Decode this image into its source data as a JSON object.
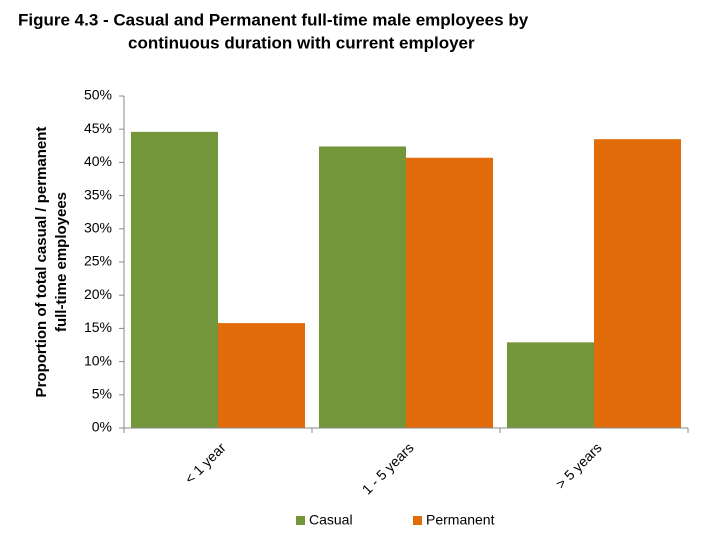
{
  "chart_data": {
    "type": "bar",
    "title": [
      "Figure 4.3 - Casual and Permanent full-time male employees by",
      "continuous duration with current employer"
    ],
    "y_label": [
      "Proportion of total casual / permanent",
      "full-time employees"
    ],
    "categories": [
      "< 1 year",
      "1 - 5 years",
      "> 5 years"
    ],
    "series": [
      {
        "name": "Casual",
        "color": "#73963a",
        "values": [
          44.6,
          42.4,
          12.9
        ]
      },
      {
        "name": "Permanent",
        "color": "#e36c0a",
        "values": [
          15.8,
          40.7,
          43.5
        ]
      }
    ],
    "ylim": [
      0,
      50
    ],
    "yticks": [
      {
        "value": 0,
        "label": "0%"
      },
      {
        "value": 5,
        "label": "5%"
      },
      {
        "value": 10,
        "label": "10%"
      },
      {
        "value": 15,
        "label": "15%"
      },
      {
        "value": 20,
        "label": "20%"
      },
      {
        "value": 25,
        "label": "25%"
      },
      {
        "value": 30,
        "label": "30%"
      },
      {
        "value": 35,
        "label": "35%"
      },
      {
        "value": 40,
        "label": "40%"
      },
      {
        "value": 45,
        "label": "45%"
      },
      {
        "value": 50,
        "label": "50%"
      }
    ],
    "grid": false,
    "legend": "bottom"
  }
}
